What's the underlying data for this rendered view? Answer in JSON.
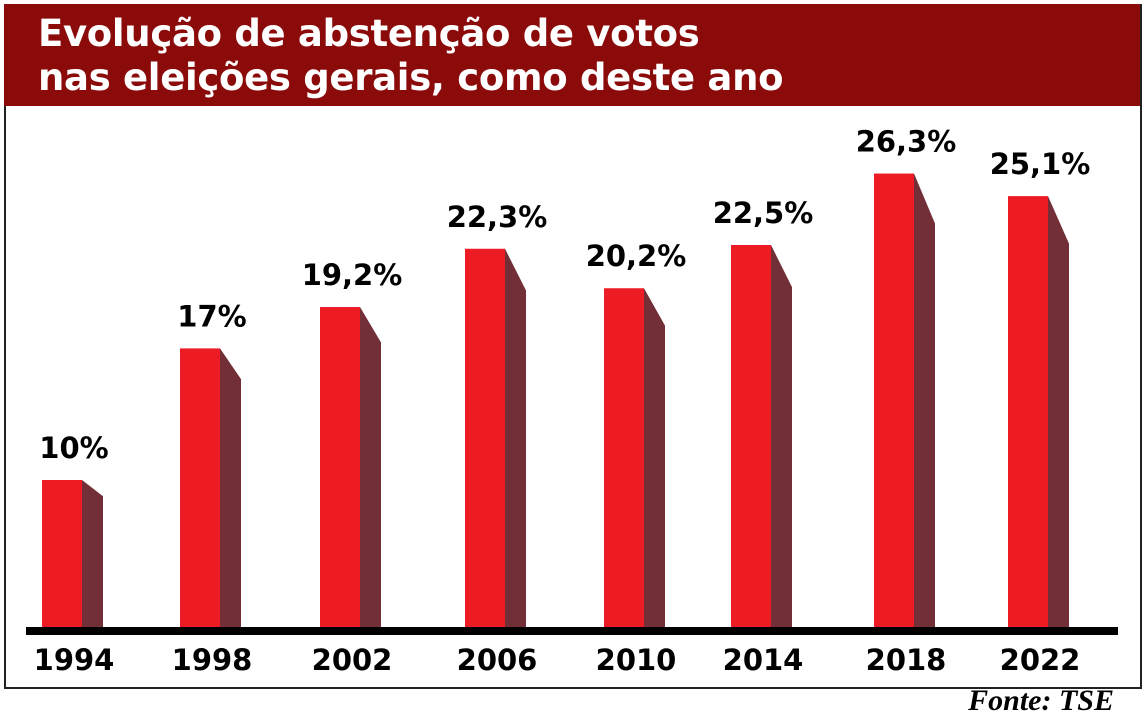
{
  "chart_data": {
    "type": "bar",
    "title": "Evolução de abstenção de votos\nnas eleições gerais, como deste ano",
    "categories": [
      "1994",
      "1998",
      "2002",
      "2006",
      "2010",
      "2014",
      "2018",
      "2022"
    ],
    "values": [
      10,
      17,
      19.2,
      22.3,
      20.2,
      22.5,
      26.3,
      25.1
    ],
    "data_labels": [
      "10%",
      "17%",
      "19,2%",
      "22,3%",
      "20,2%",
      "22,5%",
      "26,3%",
      "25,1%"
    ],
    "xlabel": "",
    "ylabel": "",
    "grid": false,
    "style": "3d",
    "colors": {
      "bar_front": "#ed1c24",
      "bar_side": "#722f37",
      "header": "#8b0a0a"
    },
    "source": "Fonte: TSE"
  }
}
